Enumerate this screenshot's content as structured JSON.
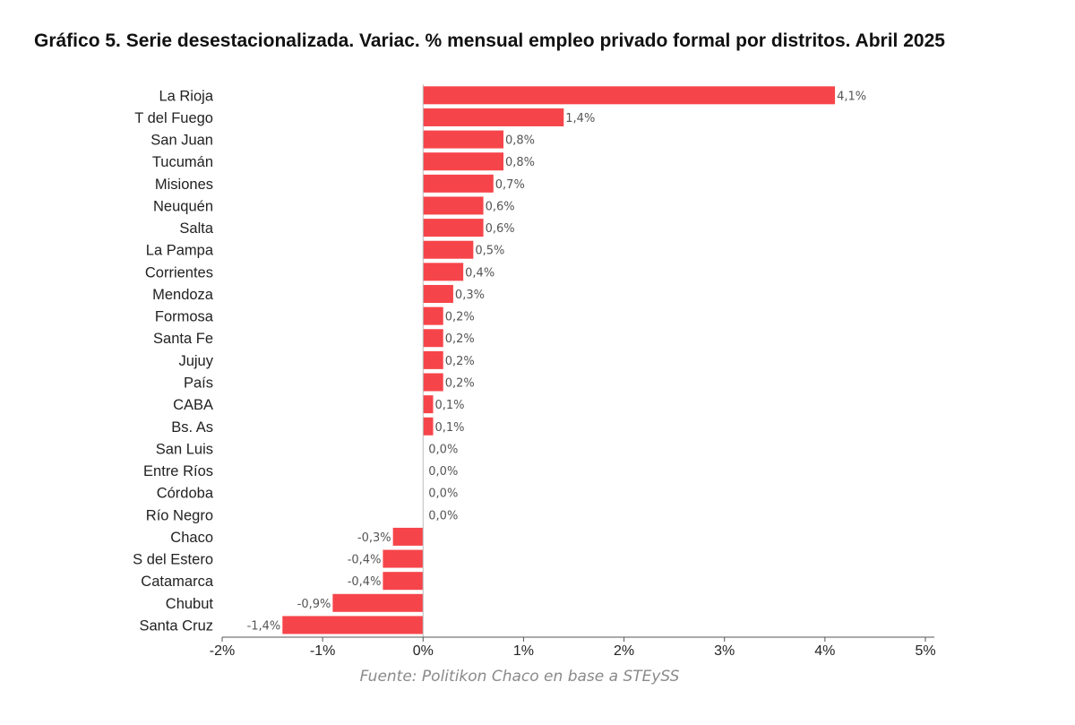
{
  "chart_data": {
    "type": "bar",
    "orientation": "horizontal",
    "title": "Gráfico 5. Serie desestacionalizada. Variac. % mensual empleo privado formal por distritos. Abril 2025",
    "source": "Fuente: Politikon Chaco en base a STEySS",
    "categories": [
      "La Rioja",
      "T del Fuego",
      "San Juan",
      "Tucumán",
      "Misiones",
      "Neuquén",
      "Salta",
      "La Pampa",
      "Corrientes",
      "Mendoza",
      "Formosa",
      "Santa Fe",
      "Jujuy",
      "País",
      "CABA",
      "Bs. As",
      "San Luis",
      "Entre Ríos",
      "Córdoba",
      "Río Negro",
      "Chaco",
      "S del Estero",
      "Catamarca",
      "Chubut",
      "Santa Cruz"
    ],
    "values": [
      4.1,
      1.4,
      0.8,
      0.8,
      0.7,
      0.6,
      0.6,
      0.5,
      0.4,
      0.3,
      0.2,
      0.2,
      0.2,
      0.2,
      0.1,
      0.1,
      0.0,
      0.0,
      0.0,
      0.0,
      -0.3,
      -0.4,
      -0.4,
      -0.9,
      -1.4
    ],
    "value_labels": [
      "4,1%",
      "1,4%",
      "0,8%",
      "0,8%",
      "0,7%",
      "0,6%",
      "0,6%",
      "0,5%",
      "0,4%",
      "0,3%",
      "0,2%",
      "0,2%",
      "0,2%",
      "0,2%",
      "0,1%",
      "0,1%",
      "0,0%",
      "0,0%",
      "0,0%",
      "0,0%",
      "-0,3%",
      "-0,4%",
      "-0,4%",
      "-0,9%",
      "-1,4%"
    ],
    "xlim": [
      -2,
      5
    ],
    "xticks": [
      -2,
      -1,
      0,
      1,
      2,
      3,
      4,
      5
    ],
    "xtick_labels": [
      "-2%",
      "-1%",
      "0%",
      "1%",
      "2%",
      "3%",
      "4%",
      "5%"
    ],
    "bar_color": "#f6454a",
    "grid": false,
    "legend": "none"
  }
}
